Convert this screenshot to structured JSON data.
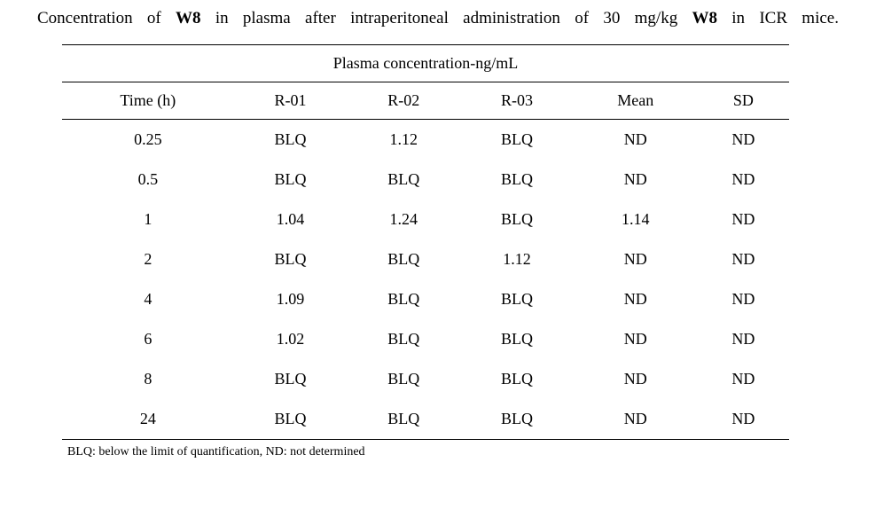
{
  "title_parts": {
    "p1": "Concentration of ",
    "b1": "W8",
    "p2": " in plasma after intraperitoneal administration of 30 mg/kg ",
    "b2": "W8",
    "p3": " in ICR mice."
  },
  "table": {
    "section_header": "Plasma concentration-ng/mL",
    "columns": [
      "Time (h)",
      "R-01",
      "R-02",
      "R-03",
      "Mean",
      "SD"
    ],
    "rows": [
      [
        "0.25",
        "BLQ",
        "1.12",
        "BLQ",
        "ND",
        "ND"
      ],
      [
        "0.5",
        "BLQ",
        "BLQ",
        "BLQ",
        "ND",
        "ND"
      ],
      [
        "1",
        "1.04",
        "1.24",
        "BLQ",
        "1.14",
        "ND"
      ],
      [
        "2",
        "BLQ",
        "BLQ",
        "1.12",
        "ND",
        "ND"
      ],
      [
        "4",
        "1.09",
        "BLQ",
        "BLQ",
        "ND",
        "ND"
      ],
      [
        "6",
        "1.02",
        "BLQ",
        "BLQ",
        "ND",
        "ND"
      ],
      [
        "8",
        "BLQ",
        "BLQ",
        "BLQ",
        "ND",
        "ND"
      ],
      [
        "24",
        "BLQ",
        "BLQ",
        "BLQ",
        "ND",
        "ND"
      ]
    ]
  },
  "footnote": "BLQ: below the limit of quantification, ND: not determined",
  "style": {
    "background_color": "#ffffff",
    "text_color": "#000000",
    "font_family": "Times New Roman",
    "title_fontsize": 19,
    "table_fontsize": 18,
    "footnote_fontsize": 14,
    "border_width_thick": 1.5,
    "border_width_thin": 1.0
  }
}
